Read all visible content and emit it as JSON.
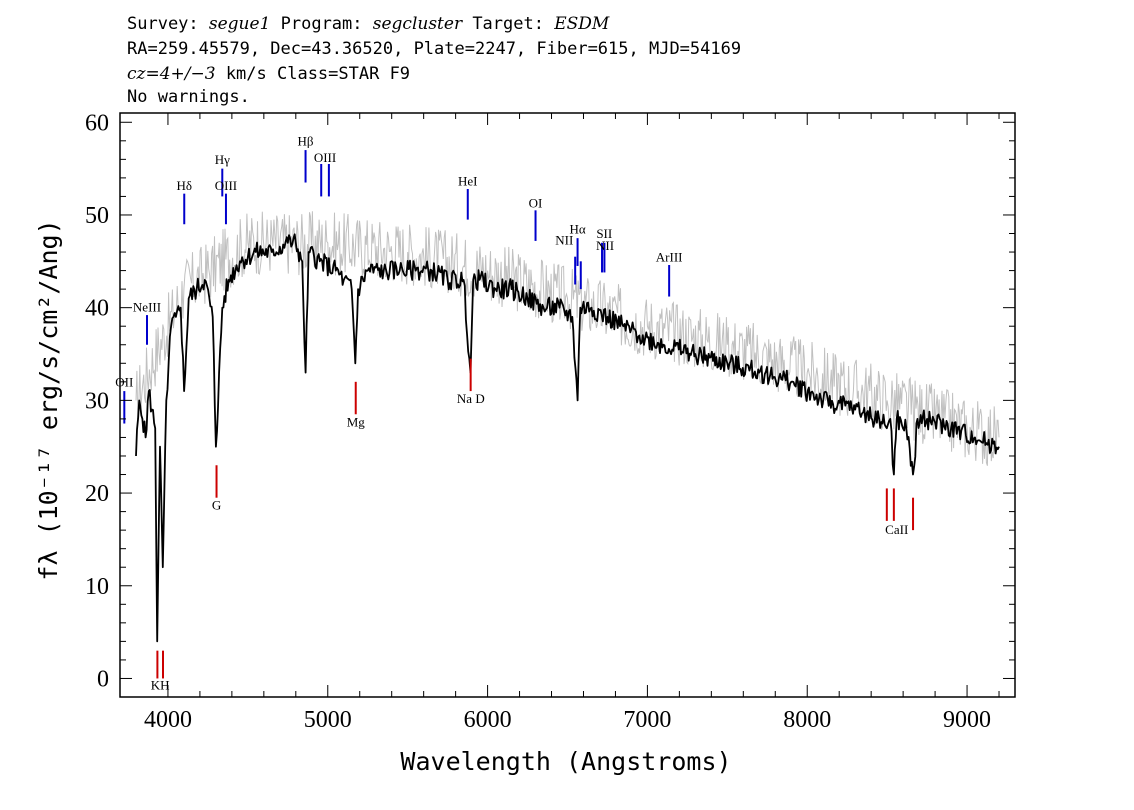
{
  "header": {
    "line1": {
      "survey_label": "Survey: ",
      "survey": "segue1",
      "program_label": " Program: ",
      "program": "segcluster",
      "target_label": " Target: ",
      "target": "ESDM"
    },
    "line2": "RA=259.45579, Dec=43.36520, Plate=2247, Fiber=615, MJD=54169",
    "line3": {
      "cz": "cz=4+/−3",
      "rest": " km/s Class=STAR F9"
    },
    "line4": "No warnings."
  },
  "chart_data": {
    "type": "line",
    "xlabel": "Wavelength (Angstroms)",
    "ylabel": "fλ (10⁻¹⁷ erg/s/cm²/Ang)",
    "xlim": [
      3700,
      9300
    ],
    "ylim": [
      -2,
      61
    ],
    "x_ticks": [
      4000,
      5000,
      6000,
      7000,
      8000,
      9000
    ],
    "y_ticks": [
      0,
      10,
      20,
      30,
      40,
      50,
      60
    ],
    "grid": false,
    "series": [
      {
        "role": "spectrum",
        "color": "#000000",
        "x": [
          3800,
          3820,
          3840,
          3860,
          3880,
          3900,
          3920,
          3933,
          3950,
          3968,
          3990,
          4020,
          4050,
          4080,
          4101,
          4130,
          4180,
          4230,
          4280,
          4300,
          4340,
          4380,
          4450,
          4550,
          4650,
          4750,
          4800,
          4840,
          4861,
          4880,
          4950,
          5050,
          5100,
          5150,
          5172,
          5190,
          5250,
          5350,
          5450,
          5550,
          5650,
          5750,
          5850,
          5893,
          5910,
          5950,
          6050,
          6150,
          6250,
          6350,
          6450,
          6530,
          6563,
          6580,
          6650,
          6750,
          6850,
          6950,
          7100,
          7300,
          7500,
          7700,
          7900,
          8100,
          8300,
          8450,
          8498,
          8520,
          8542,
          8560,
          8620,
          8662,
          8690,
          8750,
          8900,
          9050,
          9200
        ],
        "y": [
          24,
          30,
          28,
          26,
          31,
          29,
          27,
          4,
          25,
          12,
          30,
          38,
          39,
          40,
          31,
          41,
          42,
          43,
          39,
          25,
          40,
          43,
          45,
          46,
          46,
          47,
          47,
          45,
          33,
          46,
          45,
          44,
          43,
          42,
          34,
          42,
          44,
          44,
          44,
          44,
          44,
          43,
          43,
          33,
          43,
          43,
          42,
          42,
          41,
          40,
          40,
          39,
          30,
          40,
          40,
          39,
          38,
          37,
          36,
          35,
          34,
          33,
          32,
          30,
          29,
          28,
          27,
          28,
          22,
          28,
          27,
          22,
          28,
          28,
          27,
          26,
          25
        ]
      },
      {
        "role": "noise",
        "color": "#c0c0c0",
        "x": [
          3800,
          4100,
          4500,
          5000,
          5500,
          6000,
          6500,
          7000,
          7500,
          8000,
          8500,
          9000,
          9200
        ],
        "y": [
          30,
          42,
          47,
          47,
          46,
          44,
          41,
          38,
          36,
          33,
          30,
          27,
          26
        ]
      }
    ],
    "emission_lines": [
      {
        "label": "OII",
        "wavelength": 3727,
        "top": 31,
        "bottom": 27.5,
        "label_y": 31.5
      },
      {
        "label": "NeIII",
        "wavelength": 3869,
        "top": 39.2,
        "bottom": 36,
        "label_y": 39.6
      },
      {
        "label": "Hδ",
        "wavelength": 4102,
        "top": 52.3,
        "bottom": 49,
        "label_y": 52.7
      },
      {
        "label": "Hγ",
        "wavelength": 4340,
        "top": 55,
        "bottom": 52,
        "label_y": 55.5
      },
      {
        "label": "OIII",
        "wavelength": 4363,
        "top": 52.3,
        "bottom": 49,
        "label_y": 52.7
      },
      {
        "label": "Hβ",
        "wavelength": 4861,
        "top": 57,
        "bottom": 53.5,
        "label_y": 57.5
      },
      {
        "label": "OIII",
        "wavelength": 4959,
        "top": 55.5,
        "bottom": 52
      },
      {
        "label": "OIII",
        "wavelength": 5007,
        "top": 55.5,
        "bottom": 52,
        "label_y": 55.7,
        "label_x": 4983
      },
      {
        "label": "HeI",
        "wavelength": 5876,
        "top": 52.8,
        "bottom": 49.5,
        "label_y": 53.2
      },
      {
        "label": "OI",
        "wavelength": 6300,
        "top": 50.5,
        "bottom": 47.2,
        "label_y": 50.8
      },
      {
        "label": "NII",
        "wavelength": 6548,
        "top": 45.5,
        "bottom": 42.5,
        "label_y": 46.8,
        "label_x": 6480
      },
      {
        "label": "Hα",
        "wavelength": 6563,
        "top": 47.5,
        "bottom": 44.5,
        "label_y": 48
      },
      {
        "label": "NII",
        "wavelength": 6583,
        "top": 45,
        "bottom": 42
      },
      {
        "label": "SII",
        "wavelength": 6716,
        "top": 47,
        "bottom": 43.8,
        "label_y": 47.5,
        "label_x": 6730
      },
      {
        "label": "NII",
        "wavelength": 6731,
        "top": 47,
        "bottom": 43.8,
        "label_y": 46.2,
        "label_x": 6735
      },
      {
        "label": "ArIII",
        "wavelength": 7136,
        "top": 44.6,
        "bottom": 41.2,
        "label_y": 45
      }
    ],
    "absorption_lines": [
      {
        "label": "K",
        "wavelength": 3934,
        "top": 3,
        "bottom": 0
      },
      {
        "label": "H",
        "wavelength": 3969,
        "top": 3,
        "bottom": 0
      },
      {
        "label": "G",
        "wavelength": 4304,
        "top": 23,
        "bottom": 19.5
      },
      {
        "label": "Mg",
        "wavelength": 5175,
        "top": 32,
        "bottom": 28.5
      },
      {
        "label": "Na",
        "wavelength": 5894,
        "top": 34.5,
        "bottom": 31
      },
      {
        "label": "D",
        "wavelength": 5896
      },
      {
        "label": "CaII",
        "wavelength": 8498,
        "top": 20.5,
        "bottom": 17
      },
      {
        "label": "CaII",
        "wavelength": 8542,
        "top": 20.5,
        "bottom": 17
      },
      {
        "label": "CaII",
        "wavelength": 8662,
        "top": 19.5,
        "bottom": 16
      }
    ],
    "absorption_labels": [
      {
        "text": "KH",
        "wavelength": 3951,
        "y": -1.2
      },
      {
        "text": "G",
        "wavelength": 4304,
        "y": 18.2
      },
      {
        "text": "Mg",
        "wavelength": 5175,
        "y": 27.2
      },
      {
        "text": "Na  D",
        "wavelength": 5895,
        "y": 29.7
      },
      {
        "text": "CaII",
        "wavelength": 8560,
        "y": 15.6
      }
    ],
    "emission_color": "#0000cc",
    "absorption_color": "#cc0000"
  }
}
